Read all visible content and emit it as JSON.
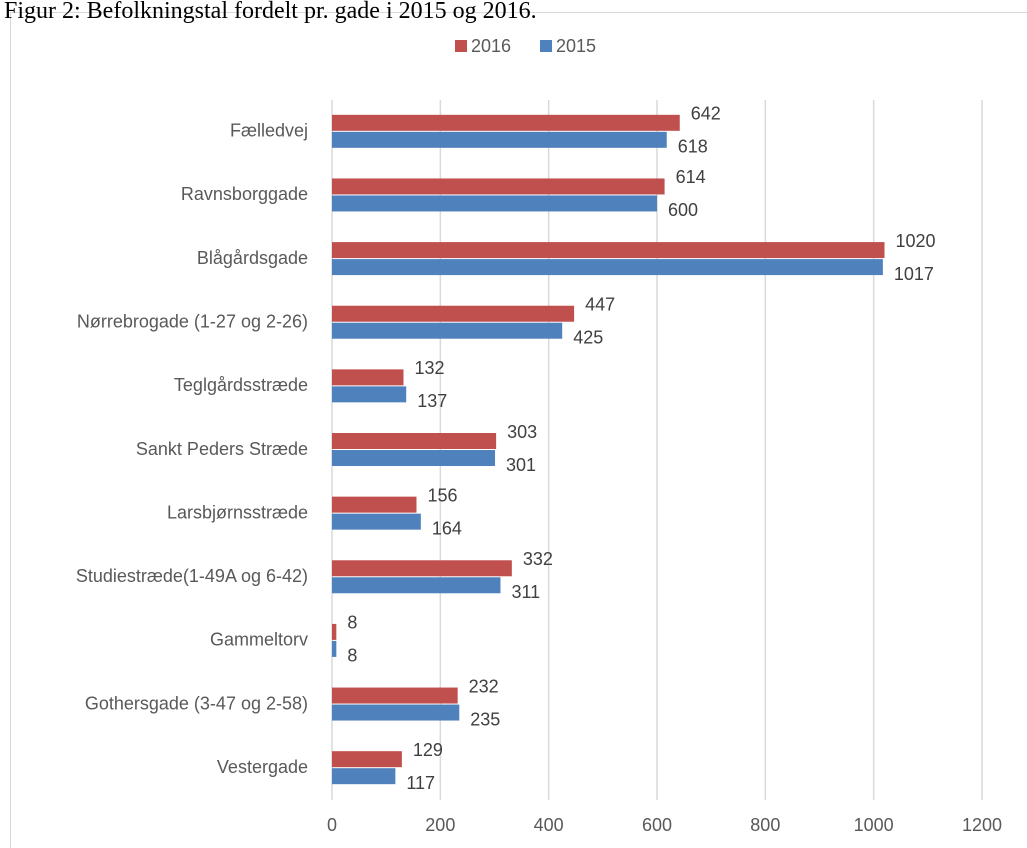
{
  "chart_data": {
    "type": "bar",
    "orientation": "horizontal",
    "title": "Figur 2: Befolkningstal fordelt pr. gade i 2015 og 2016.",
    "categories": [
      "Fælledvej",
      "Ravnsborggade",
      "Blågårdsgade",
      "Nørrebrogade (1-27 og 2-26)",
      "Teglgårdsstræde",
      "Sankt Peders Stræde",
      "Larsbjørnsstræde",
      "Studiestræde(1-49A og 6-42)",
      "Gammeltorv",
      "Gothersgade (3-47 og 2-58)",
      "Vestergade"
    ],
    "series": [
      {
        "name": "2016",
        "color": "#c0504d",
        "values": [
          642,
          614,
          1020,
          447,
          132,
          303,
          156,
          332,
          8,
          232,
          129
        ]
      },
      {
        "name": "2015",
        "color": "#4f81bd",
        "values": [
          618,
          600,
          1017,
          425,
          137,
          301,
          164,
          311,
          8,
          235,
          117
        ]
      }
    ],
    "xlim": [
      0,
      1200
    ],
    "xticks": [
      0,
      200,
      400,
      600,
      800,
      1000,
      1200
    ],
    "grid": true,
    "legend": "top"
  }
}
